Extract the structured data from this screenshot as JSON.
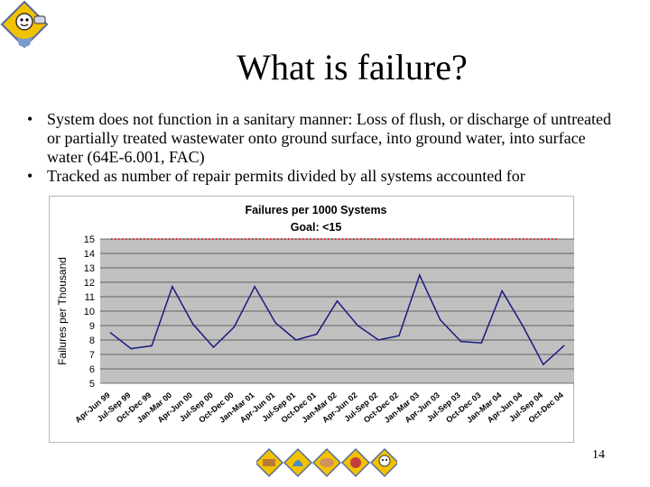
{
  "slide": {
    "title": "What is failure?",
    "bullets": [
      "System does not function in a sanitary manner: Loss of flush, or discharge of untreated or partially treated wastewater onto ground surface, into ground water, into surface water (64E-6.001, FAC)",
      "Tracked as number of repair permits divided by all systems accounted for"
    ],
    "page_number": "14",
    "logo_icon": "septic-system-logo-icon",
    "footer_icons": [
      "environment-icon-1",
      "environment-icon-2",
      "environment-icon-3",
      "environment-icon-4",
      "environment-icon-5"
    ]
  },
  "chart_data": {
    "type": "line",
    "title": "Failures per 1000 Systems",
    "subtitle": "Goal: <15",
    "xlabel": "",
    "ylabel": "Failures per Thousand",
    "categories": [
      "Apr-Jun 99",
      "Jul-Sep 99",
      "Oct-Dec 99",
      "Jan-Mar 00",
      "Apr-Jun 00",
      "Jul-Sep 00",
      "Oct-Dec 00",
      "Jan-Mar 01",
      "Apr-Jun 01",
      "Jul-Sep 01",
      "Oct-Dec 01",
      "Jan-Mar 02",
      "Apr-Jun 02",
      "Jul-Sep 02",
      "Oct-Dec 02",
      "Jan-Mar 03",
      "Apr-Jun 03",
      "Jul-Sep 03",
      "Oct-Dec 03",
      "Jan-Mar 04",
      "Apr-Jun 04",
      "Jul-Sep 04",
      "Oct-Dec 04"
    ],
    "series": [
      {
        "values": [
          8.5,
          7.4,
          7.6,
          11.7,
          9.1,
          7.5,
          8.9,
          11.7,
          9.2,
          8.0,
          8.4,
          10.7,
          9.0,
          8.0,
          8.3,
          12.5,
          9.4,
          7.9,
          7.8,
          11.4,
          9.0,
          6.3,
          7.6
        ],
        "color": "#1a1a80"
      },
      {
        "name": "Goal",
        "values": [
          15,
          15,
          15,
          15,
          15,
          15,
          15,
          15,
          15,
          15,
          15,
          15,
          15,
          15,
          15,
          15,
          15,
          15,
          15,
          15,
          15,
          15,
          15
        ],
        "color": "#e03030",
        "style": "dotted"
      }
    ],
    "ylim": [
      5,
      15
    ],
    "yticks": [
      5,
      6,
      7,
      8,
      9,
      10,
      11,
      12,
      13,
      14,
      15
    ],
    "grid": true,
    "plot_background": "#c0c0c0",
    "legend": "none"
  }
}
